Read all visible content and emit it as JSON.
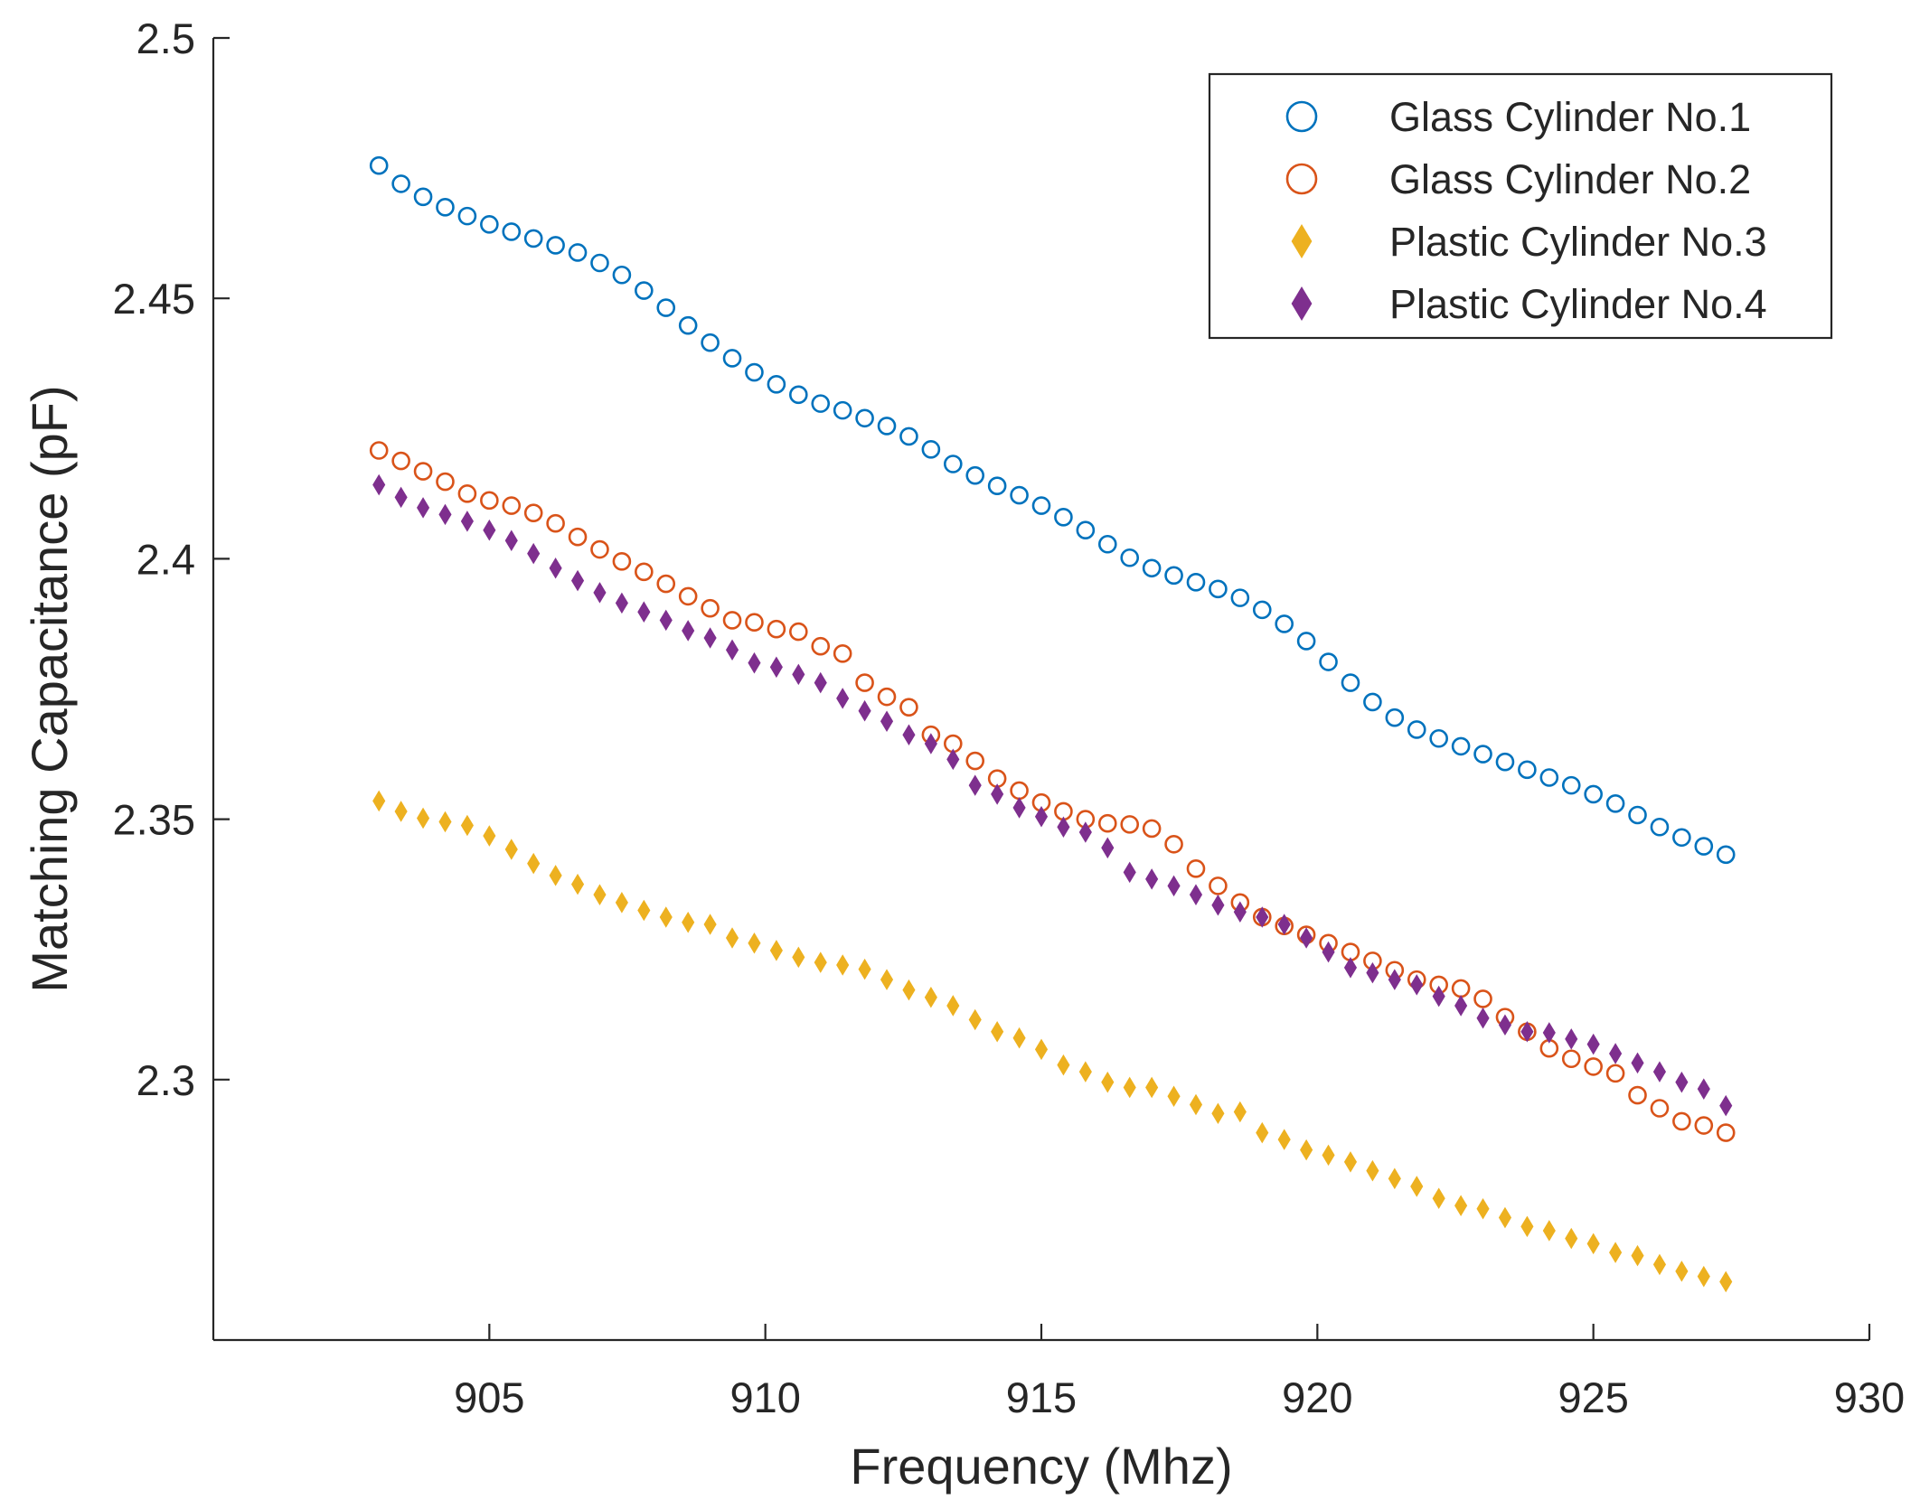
{
  "chart_data": {
    "type": "scatter",
    "xlabel": "Frequency (Mhz)",
    "ylabel": "Matching Capacitance (pF)",
    "xlim": [
      900,
      930
    ],
    "ylim": [
      2.25,
      2.5
    ],
    "x_ticks": [
      905,
      910,
      915,
      920,
      925,
      930
    ],
    "x_tick_labels": [
      "905",
      "910",
      "915",
      "920",
      "925",
      "930"
    ],
    "y_ticks": [
      2.3,
      2.35,
      2.4,
      2.45,
      2.5
    ],
    "y_tick_labels": [
      "2.3",
      "2.35",
      "2.4",
      "2.45",
      "2.5"
    ],
    "grid": false,
    "legend_position": "top-right",
    "x": [
      903.0,
      903.4,
      903.8,
      904.2,
      904.6,
      905.0,
      905.4,
      905.8,
      906.2,
      906.6,
      907.0,
      907.4,
      907.8,
      908.2,
      908.6,
      909.0,
      909.4,
      909.8,
      910.2,
      910.6,
      911.0,
      911.4,
      911.8,
      912.2,
      912.6,
      913.0,
      913.4,
      913.8,
      914.2,
      914.6,
      915.0,
      915.4,
      915.8,
      916.2,
      916.6,
      917.0,
      917.4,
      917.8,
      918.2,
      918.6,
      919.0,
      919.4,
      919.8,
      920.2,
      920.6,
      921.0,
      921.4,
      921.8,
      922.2,
      922.6,
      923.0,
      923.4,
      923.8,
      924.2,
      924.6,
      925.0,
      925.4,
      925.8,
      926.2,
      926.6,
      927.0,
      927.4
    ],
    "series": [
      {
        "name": "Glass Cylinder No.1",
        "marker": "circle",
        "filled": false,
        "color": "#0072BD",
        "values": [
          2.4755,
          2.472,
          2.4695,
          2.4675,
          2.4658,
          2.4642,
          2.4628,
          2.4615,
          2.4602,
          2.4588,
          2.4568,
          2.4545,
          2.4515,
          2.4482,
          2.4448,
          2.4415,
          2.4385,
          2.4358,
          2.4335,
          2.4315,
          2.4298,
          2.4285,
          2.427,
          2.4255,
          2.4235,
          2.421,
          2.4182,
          2.416,
          2.414,
          2.4122,
          2.4102,
          2.408,
          2.4055,
          2.4028,
          2.4002,
          2.3982,
          2.3968,
          2.3955,
          2.3942,
          2.3925,
          2.3902,
          2.3875,
          2.3842,
          2.3802,
          2.3762,
          2.3725,
          2.3695,
          2.3672,
          2.3655,
          2.364,
          2.3625,
          2.361,
          2.3595,
          2.358,
          2.3565,
          2.3548,
          2.353,
          2.3508,
          2.3485,
          2.3465,
          2.3448,
          2.3432
        ]
      },
      {
        "name": "Glass Cylinder No.2",
        "marker": "circle",
        "filled": false,
        "color": "#D95319",
        "values": [
          2.4208,
          2.4188,
          2.4168,
          2.4148,
          2.4125,
          2.4112,
          2.4102,
          2.4088,
          2.4068,
          2.4042,
          2.4018,
          2.3995,
          2.3975,
          2.3952,
          2.3928,
          2.3905,
          2.3882,
          2.3878,
          2.3865,
          2.386,
          2.3832,
          2.3818,
          2.3762,
          2.3735,
          2.3715,
          2.3662,
          2.3645,
          2.3612,
          2.3578,
          2.3555,
          2.3532,
          2.3515,
          2.35,
          2.3492,
          2.349,
          2.3482,
          2.3452,
          2.3405,
          2.3372,
          2.334,
          2.3312,
          2.3295,
          2.3278,
          2.3262,
          2.3245,
          2.3228,
          2.321,
          2.3192,
          2.3182,
          2.3175,
          2.3155,
          2.312,
          2.3092,
          2.306,
          2.304,
          2.3025,
          2.3012,
          2.297,
          2.2945,
          2.292,
          2.2912,
          2.2898
        ]
      },
      {
        "name": "Plastic Cylinder No.3",
        "marker": "diamond",
        "filled": true,
        "color": "#EDB120",
        "values": [
          2.3535,
          2.3515,
          2.3502,
          2.3495,
          2.3488,
          2.3468,
          2.3442,
          2.3415,
          2.3392,
          2.3375,
          2.3355,
          2.334,
          2.3325,
          2.3312,
          2.3302,
          2.3298,
          2.3272,
          2.3262,
          2.3248,
          2.3235,
          2.3225,
          2.322,
          2.3212,
          2.3192,
          2.3172,
          2.3158,
          2.3142,
          2.3115,
          2.3092,
          2.308,
          2.3058,
          2.3028,
          2.3015,
          2.2995,
          2.2985,
          2.2985,
          2.2968,
          2.2952,
          2.2935,
          2.2938,
          2.2898,
          2.2885,
          2.2865,
          2.2855,
          2.2842,
          2.2825,
          2.281,
          2.2795,
          2.2772,
          2.2758,
          2.2752,
          2.2735,
          2.2718,
          2.271,
          2.2695,
          2.2685,
          2.2668,
          2.2662,
          2.2645,
          2.2632,
          2.2622,
          2.2612
        ]
      },
      {
        "name": "Plastic Cylinder No.4",
        "marker": "diamond",
        "filled": true,
        "color": "#7E2F8E",
        "values": [
          2.4142,
          2.4118,
          2.4098,
          2.4085,
          2.4072,
          2.4055,
          2.4035,
          2.401,
          2.3982,
          2.3958,
          2.3935,
          2.3915,
          2.3898,
          2.3882,
          2.3862,
          2.3848,
          2.3825,
          2.38,
          2.3792,
          2.3778,
          2.3762,
          2.3732,
          2.3708,
          2.3688,
          2.3662,
          2.3645,
          2.3615,
          2.3565,
          2.3548,
          2.3522,
          2.3505,
          2.3485,
          2.3475,
          2.3445,
          2.3398,
          2.3385,
          2.3372,
          2.3355,
          2.3335,
          2.3322,
          2.3312,
          2.3298,
          2.3272,
          2.3245,
          2.3215,
          2.3205,
          2.3192,
          2.3182,
          2.316,
          2.3142,
          2.3118,
          2.3105,
          2.3092,
          2.309,
          2.3078,
          2.3068,
          2.305,
          2.3032,
          2.3015,
          2.2995,
          2.2982,
          2.295
        ]
      }
    ]
  }
}
